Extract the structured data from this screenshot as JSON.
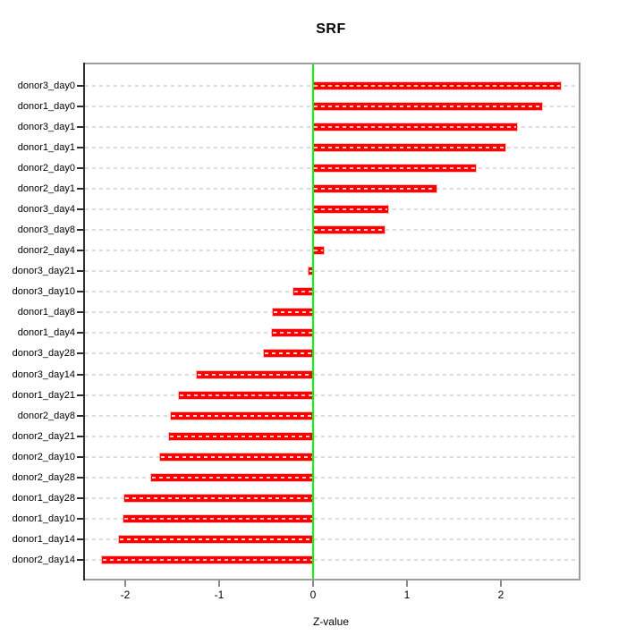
{
  "chart_data": {
    "type": "bar",
    "orientation": "horizontal",
    "title": "SRF",
    "xlabel": "Z-value",
    "ylabel": "",
    "grid": true,
    "legend_position": "none",
    "categories": [
      "donor3_day0",
      "donor1_day0",
      "donor3_day1",
      "donor1_day1",
      "donor2_day0",
      "donor2_day1",
      "donor3_day4",
      "donor3_day8",
      "donor2_day4",
      "donor3_day21",
      "donor3_day10",
      "donor1_day8",
      "donor1_day4",
      "donor3_day28",
      "donor3_day14",
      "donor1_day21",
      "donor2_day8",
      "donor2_day21",
      "donor2_day10",
      "donor2_day28",
      "donor1_day28",
      "donor1_day10",
      "donor1_day14",
      "donor2_day14"
    ],
    "values": [
      2.64,
      2.44,
      2.17,
      2.05,
      1.73,
      1.31,
      0.8,
      0.76,
      0.11,
      -0.05,
      -0.21,
      -0.43,
      -0.44,
      -0.52,
      -1.24,
      -1.43,
      -1.51,
      -1.53,
      -1.63,
      -1.72,
      -2.01,
      -2.02,
      -2.07,
      -2.25
    ],
    "xticks": [
      -2,
      -1,
      0,
      1,
      2
    ],
    "xlim": [
      -2.45,
      2.83
    ],
    "colors": {
      "bar": "#ff0000",
      "zero_line": "#00ff00",
      "grid": "#dcdcdc",
      "box": "#9c9c9c",
      "axis": "#2e2e2e",
      "text": "#000000"
    }
  }
}
